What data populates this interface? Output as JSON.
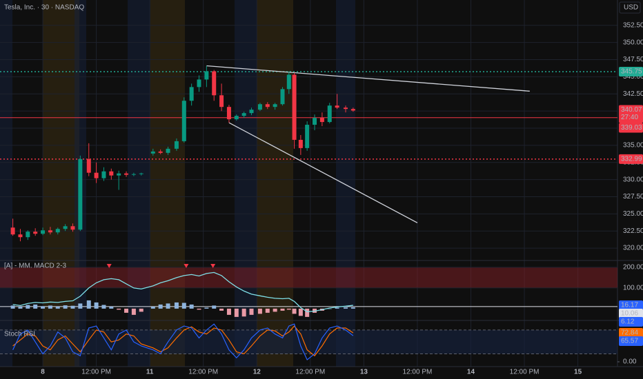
{
  "chart_data": [
    {
      "type": "candlestick",
      "title": "Tesla, Inc. · 30 · NASDAQ",
      "currency": "USD",
      "x": [
        -0.28,
        -0.21,
        -0.14,
        -0.07,
        0,
        0.07,
        0.14,
        0.21,
        0.28,
        0.35,
        0.43,
        0.5,
        0.57,
        0.64,
        0.71,
        0.78,
        0.85,
        0.92,
        1.03,
        1.1,
        1.17,
        1.25,
        1.32,
        1.39,
        1.46,
        1.53,
        1.6,
        1.67,
        1.74,
        1.81,
        1.88,
        1.95,
        2.03,
        2.1,
        2.17,
        2.24,
        2.3,
        2.35,
        2.41,
        2.47,
        2.54,
        2.61,
        2.68,
        2.75,
        2.83,
        2.9
      ],
      "open": [
        323.0,
        322.0,
        321.6,
        322.4,
        322.1,
        322.6,
        322.3,
        322.8,
        323.2,
        322.7,
        333.0,
        331.0,
        330.2,
        331.2,
        330.6,
        330.9,
        330.7,
        330.8,
        333.8,
        334.1,
        333.9,
        334.5,
        335.6,
        341.5,
        343.5,
        344.6,
        345.8,
        342.3,
        340.6,
        338.8,
        339.3,
        339.7,
        340.2,
        341.0,
        340.6,
        341.0,
        343.2,
        345.3,
        335.8,
        334.6,
        338.0,
        339.0,
        338.4,
        340.8,
        340.5,
        340.3
      ],
      "high": [
        324.3,
        322.8,
        322.6,
        322.9,
        323.0,
        323.1,
        323.0,
        323.5,
        323.6,
        333.5,
        335.3,
        332.5,
        331.8,
        331.6,
        331.3,
        331.2,
        331.0,
        331.0,
        334.5,
        334.4,
        334.8,
        336.0,
        342.0,
        344.0,
        345.2,
        346.6,
        346.0,
        344.0,
        340.9,
        339.5,
        339.9,
        340.5,
        341.2,
        341.3,
        341.2,
        343.5,
        345.8,
        345.6,
        336.5,
        338.5,
        339.5,
        339.8,
        341.2,
        342.5,
        340.8,
        340.5
      ],
      "low": [
        321.8,
        321.0,
        321.2,
        321.8,
        321.9,
        322.0,
        322.0,
        322.5,
        322.4,
        322.5,
        330.5,
        329.5,
        329.8,
        330.0,
        328.5,
        330.4,
        330.5,
        330.6,
        333.5,
        333.7,
        333.6,
        334.2,
        335.4,
        340.8,
        342.8,
        343.5,
        341.5,
        340.0,
        338.3,
        338.6,
        339.0,
        339.4,
        340.0,
        340.3,
        340.2,
        340.8,
        342.5,
        334.5,
        333.6,
        334.2,
        337.2,
        337.8,
        338.2,
        340.3,
        339.8,
        339.9
      ],
      "close": [
        322.0,
        321.6,
        322.4,
        322.1,
        322.6,
        322.3,
        322.8,
        323.2,
        322.7,
        333.0,
        331.0,
        330.2,
        331.2,
        330.6,
        330.9,
        330.7,
        330.8,
        330.9,
        334.1,
        333.9,
        334.5,
        335.6,
        341.5,
        343.5,
        344.6,
        345.8,
        342.3,
        340.6,
        338.8,
        339.3,
        339.7,
        340.2,
        341.0,
        340.6,
        341.0,
        343.2,
        345.3,
        335.8,
        334.6,
        338.0,
        339.0,
        338.4,
        340.8,
        340.5,
        340.3,
        340.07
      ],
      "up_color": "#089981",
      "down_color": "#f23645",
      "countdown": "27:40",
      "levels": [
        {
          "value": 345.75,
          "color": "#22ab94"
        },
        {
          "value": 339.03,
          "color": "#f23645"
        },
        {
          "value": 332.99,
          "color": "#f23645"
        }
      ],
      "trendlines": [
        {
          "x": [
            1.53,
            4.55
          ],
          "y": [
            346.6,
            342.9
          ]
        },
        {
          "x": [
            1.74,
            3.5
          ],
          "y": [
            338.3,
            323.7
          ]
        }
      ],
      "trendline_color": "#d1d4dc",
      "xlim": [
        -0.4,
        5.37
      ],
      "ylim": [
        318.2,
        356.2
      ],
      "xticks": [
        {
          "value": 0,
          "label": "8"
        },
        {
          "value": 0.5,
          "label": "12:00 PM"
        },
        {
          "value": 1,
          "label": "11"
        },
        {
          "value": 1.5,
          "label": "12:00 PM"
        },
        {
          "value": 2,
          "label": "12"
        },
        {
          "value": 2.5,
          "label": "12:00 PM"
        },
        {
          "value": 3,
          "label": "13"
        },
        {
          "value": 3.5,
          "label": "12:00 PM"
        },
        {
          "value": 4,
          "label": "14"
        },
        {
          "value": 4.5,
          "label": "12:00 PM"
        },
        {
          "value": 5,
          "label": "15"
        }
      ],
      "yticks": [
        {
          "value": 320,
          "label": "320.00"
        },
        {
          "value": 322.5,
          "label": "322.50"
        },
        {
          "value": 325,
          "label": "325.00"
        },
        {
          "value": 327.5,
          "label": "327.50"
        },
        {
          "value": 330,
          "label": "330.00"
        },
        {
          "value": 332.5,
          "label": "332.50"
        },
        {
          "value": 335,
          "label": "335.00"
        },
        {
          "value": 337.5,
          "label": "337.50"
        },
        {
          "value": 340,
          "label": "340.00"
        },
        {
          "value": 342.5,
          "label": "342.50"
        },
        {
          "value": 345,
          "label": "345.00"
        },
        {
          "value": 347.5,
          "label": "347.50"
        },
        {
          "value": 350,
          "label": "350.00"
        },
        {
          "value": 352.5,
          "label": "352.50"
        }
      ],
      "grid": true
    },
    {
      "type": "oscillator",
      "title": "[A] - MM. MACD 2-3",
      "line": [
        20,
        15,
        25,
        30,
        28,
        32,
        30,
        35,
        38,
        60,
        100,
        125,
        140,
        145,
        140,
        120,
        100,
        95,
        110,
        125,
        135,
        150,
        160,
        165,
        158,
        170,
        175,
        160,
        130,
        105,
        85,
        70,
        62,
        55,
        50,
        48,
        50,
        35,
        5,
        -15,
        -12,
        -5,
        3,
        8,
        12,
        16.17
      ],
      "histogram": [
        15,
        10,
        18,
        20,
        12,
        15,
        10,
        16,
        14,
        25,
        40,
        30,
        18,
        10,
        -5,
        -20,
        -30,
        -15,
        10,
        20,
        25,
        30,
        28,
        20,
        -5,
        5,
        15,
        -10,
        -30,
        -40,
        -38,
        -30,
        -25,
        -20,
        -15,
        -10,
        -5,
        -25,
        -35,
        -40,
        -20,
        -10,
        0,
        5,
        6,
        6.12
      ],
      "reference": 10.06,
      "zone": [
        100,
        200
      ],
      "signals": [
        0.62,
        1.34,
        1.59
      ],
      "line_color": "#7fe0e8",
      "up_color": "#8fb4dd",
      "down_color": "#e89aa6",
      "signal_color": "#f23645",
      "ylim": [
        -47,
        233
      ],
      "yticks": [
        {
          "value": 100,
          "label": "100.00"
        },
        {
          "value": 200,
          "label": "200.00"
        }
      ]
    },
    {
      "type": "stoch",
      "title": "Stoch RSI",
      "k": [
        30,
        70,
        80,
        50,
        20,
        40,
        75,
        60,
        25,
        15,
        85,
        90,
        60,
        30,
        70,
        80,
        50,
        40,
        30,
        20,
        50,
        80,
        90,
        85,
        60,
        80,
        95,
        70,
        30,
        10,
        30,
        60,
        80,
        85,
        70,
        60,
        90,
        95,
        40,
        5,
        20,
        60,
        85,
        90,
        80,
        65.57
      ],
      "d": [
        40,
        55,
        70,
        65,
        40,
        30,
        55,
        65,
        45,
        25,
        55,
        80,
        75,
        50,
        55,
        70,
        65,
        45,
        35,
        25,
        35,
        60,
        80,
        88,
        75,
        70,
        85,
        80,
        55,
        25,
        20,
        40,
        65,
        80,
        78,
        65,
        75,
        90,
        70,
        30,
        15,
        40,
        70,
        85,
        85,
        72.84
      ],
      "k_color": "#2962ff",
      "d_color": "#ff6d00",
      "bands": [
        20,
        80
      ],
      "ylim": [
        -12.1,
        98.9
      ],
      "yticks": [
        {
          "value": 0,
          "label": "0.00"
        }
      ]
    }
  ]
}
